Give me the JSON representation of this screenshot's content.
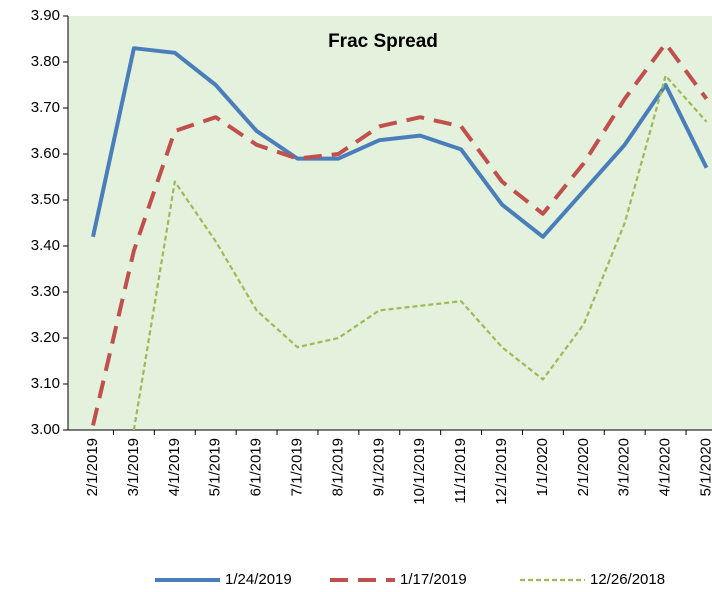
{
  "chart_data": {
    "type": "line",
    "title": "Frac Spread",
    "categories": [
      "2/1/2019",
      "3/1/2019",
      "4/1/2019",
      "5/1/2019",
      "6/1/2019",
      "7/1/2019",
      "8/1/2019",
      "9/1/2019",
      "10/1/2019",
      "11/1/2019",
      "12/1/2019",
      "1/1/2020",
      "2/1/2020",
      "3/1/2020",
      "4/1/2020",
      "5/1/2020"
    ],
    "series": [
      {
        "name": "1/24/2019",
        "color": "#4a7ebb",
        "dash": "solid",
        "values": [
          3.42,
          3.83,
          3.82,
          3.75,
          3.65,
          3.59,
          3.59,
          3.63,
          3.64,
          3.61,
          3.49,
          3.42,
          3.52,
          3.62,
          3.75,
          3.57
        ]
      },
      {
        "name": "1/17/2019",
        "color": "#c0504d",
        "dash": "long",
        "values": [
          3.01,
          3.39,
          3.65,
          3.68,
          3.62,
          3.59,
          3.6,
          3.66,
          3.68,
          3.66,
          3.54,
          3.47,
          3.58,
          3.72,
          3.84,
          3.72
        ]
      },
      {
        "name": "12/26/2018",
        "color": "#9bbb59",
        "dash": "short",
        "values": [
          null,
          3.0,
          3.54,
          3.41,
          3.26,
          3.18,
          3.2,
          3.26,
          3.27,
          3.28,
          3.18,
          3.11,
          3.23,
          3.45,
          3.77,
          3.67
        ]
      }
    ],
    "ylim": [
      3.0,
      3.9
    ],
    "yticks": [
      {
        "value": 3.0,
        "label": "3.00"
      },
      {
        "value": 3.1,
        "label": "3.10"
      },
      {
        "value": 3.2,
        "label": "3.20"
      },
      {
        "value": 3.3,
        "label": "3.30"
      },
      {
        "value": 3.4,
        "label": "3.40"
      },
      {
        "value": 3.5,
        "label": "3.50"
      },
      {
        "value": 3.6,
        "label": "3.60"
      },
      {
        "value": 3.7,
        "label": "3.70"
      },
      {
        "value": 3.8,
        "label": "3.80"
      },
      {
        "value": 3.9,
        "label": "3.90"
      }
    ],
    "grid": false,
    "background": "#e4f1dc",
    "legend": "bottom"
  }
}
